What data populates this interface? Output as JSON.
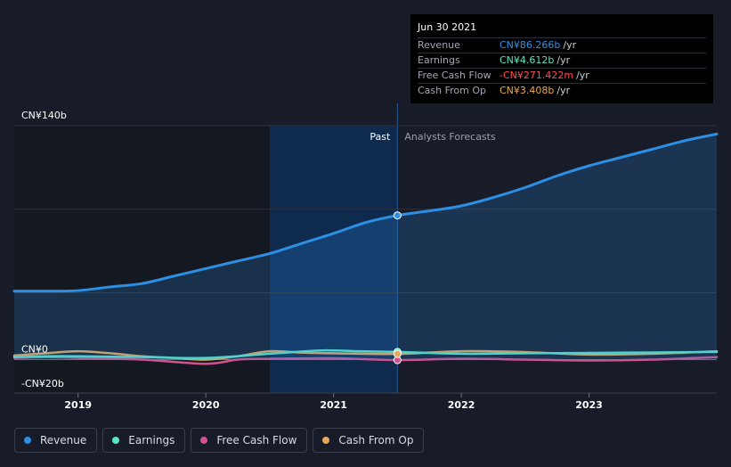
{
  "chart_data": {
    "type": "line",
    "y_axis": {
      "labels": [
        "CN¥140b",
        "CN¥0",
        "-CN¥20b"
      ],
      "ylim": [
        -20,
        140
      ],
      "unit": "CN¥b"
    },
    "x_axis": {
      "ticks": [
        "2019",
        "2020",
        "2021",
        "2022",
        "2023"
      ],
      "xlim": [
        2018.5,
        2024.0
      ]
    },
    "regions": {
      "past_label": "Past",
      "forecast_label": "Analysts Forecasts",
      "divider_x": 2021.5,
      "highlight_start_x": 2020.5
    },
    "series": [
      {
        "name": "Revenue",
        "color": "#2d8fe3",
        "fill": true,
        "points": [
          [
            2018.5,
            41
          ],
          [
            2018.75,
            41
          ],
          [
            2019.0,
            41.3
          ],
          [
            2019.25,
            43.5
          ],
          [
            2019.5,
            45.5
          ],
          [
            2019.75,
            50
          ],
          [
            2020.0,
            54.5
          ],
          [
            2020.25,
            59
          ],
          [
            2020.5,
            63.5
          ],
          [
            2020.75,
            69.5
          ],
          [
            2021.0,
            75.5
          ],
          [
            2021.25,
            82
          ],
          [
            2021.5,
            86.3
          ],
          [
            2021.75,
            89
          ],
          [
            2022.0,
            92
          ],
          [
            2022.25,
            97
          ],
          [
            2022.5,
            103
          ],
          [
            2022.75,
            110
          ],
          [
            2023.0,
            116
          ],
          [
            2023.25,
            121
          ],
          [
            2023.5,
            126
          ],
          [
            2023.75,
            131
          ],
          [
            2024.0,
            135
          ]
        ]
      },
      {
        "name": "Earnings",
        "color": "#58e6c6",
        "fill": false,
        "points": [
          [
            2018.5,
            1.5
          ],
          [
            2018.75,
            2
          ],
          [
            2019.0,
            2
          ],
          [
            2019.5,
            1.5
          ],
          [
            2020.0,
            1.0
          ],
          [
            2020.5,
            3.5
          ],
          [
            2020.9,
            5.5
          ],
          [
            2021.2,
            5
          ],
          [
            2021.5,
            4.6
          ],
          [
            2022.0,
            3.5
          ],
          [
            2022.5,
            3.8
          ],
          [
            2023.0,
            4
          ],
          [
            2023.5,
            4.3
          ],
          [
            2024.0,
            4.6
          ]
        ]
      },
      {
        "name": "Free Cash Flow",
        "color": "#d0528f",
        "fill": false,
        "points": [
          [
            2018.5,
            1
          ],
          [
            2018.75,
            1.5
          ],
          [
            2019.0,
            1
          ],
          [
            2019.5,
            0
          ],
          [
            2020.0,
            -2.5
          ],
          [
            2020.25,
            0
          ],
          [
            2020.5,
            0.5
          ],
          [
            2021.0,
            0.8
          ],
          [
            2021.5,
            -0.27
          ],
          [
            2022.0,
            0.5
          ],
          [
            2022.5,
            0
          ],
          [
            2023.0,
            -0.5
          ],
          [
            2023.5,
            0
          ],
          [
            2024.0,
            1.5
          ]
        ]
      },
      {
        "name": "Cash From Op",
        "color": "#e8a857",
        "fill": false,
        "points": [
          [
            2018.5,
            2.5
          ],
          [
            2018.75,
            3.8
          ],
          [
            2019.0,
            5
          ],
          [
            2019.25,
            3.8
          ],
          [
            2019.5,
            2
          ],
          [
            2019.75,
            1
          ],
          [
            2020.0,
            0
          ],
          [
            2020.25,
            2
          ],
          [
            2020.5,
            5
          ],
          [
            2020.75,
            4.2
          ],
          [
            2021.0,
            3.8
          ],
          [
            2021.5,
            3.4
          ],
          [
            2022.0,
            5
          ],
          [
            2022.5,
            4.5
          ],
          [
            2023.0,
            3
          ],
          [
            2023.5,
            3.5
          ],
          [
            2024.0,
            5
          ]
        ]
      }
    ],
    "markers_x": 2021.5
  },
  "tooltip": {
    "date": "Jun 30 2021",
    "rows": [
      {
        "label": "Revenue",
        "value": "CN¥86.266b",
        "unit": "/yr",
        "color": "#2d8fe3"
      },
      {
        "label": "Earnings",
        "value": "CN¥4.612b",
        "unit": "/yr",
        "color": "#58e6c6"
      },
      {
        "label": "Free Cash Flow",
        "value": "-CN¥271.422m",
        "unit": "/yr",
        "color": "#ff4d4d"
      },
      {
        "label": "Cash From Op",
        "value": "CN¥3.408b",
        "unit": "/yr",
        "color": "#e8a857"
      }
    ]
  },
  "legend": [
    {
      "label": "Revenue",
      "color": "#2d8fe3"
    },
    {
      "label": "Earnings",
      "color": "#58e6c6"
    },
    {
      "label": "Free Cash Flow",
      "color": "#d0528f"
    },
    {
      "label": "Cash From Op",
      "color": "#e8a857"
    }
  ]
}
